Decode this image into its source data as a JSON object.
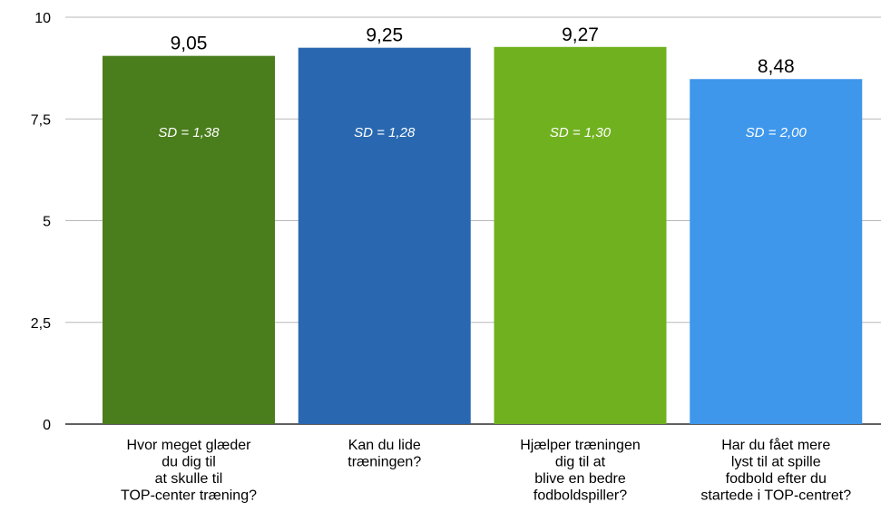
{
  "chart_data": {
    "type": "bar",
    "title": "",
    "xlabel": "",
    "ylabel": "",
    "ylim": [
      0,
      10
    ],
    "yticks": [
      "0",
      "2,5",
      "5",
      "7,5",
      "10"
    ],
    "ytick_values": [
      0,
      2.5,
      5,
      7.5,
      10
    ],
    "grid": true,
    "categories": [
      [
        "Hvor meget glæder",
        "du dig til",
        "at skulle til",
        "TOP-center træning?"
      ],
      [
        "Kan du lide",
        "træningen?"
      ],
      [
        "Hjælper træningen",
        "dig til at",
        "blive en bedre",
        "fodboldspiller?"
      ],
      [
        "Har du fået mere",
        "lyst til at spille",
        "fodbold efter du",
        "startede i TOP-centret?"
      ]
    ],
    "values": [
      9.05,
      9.25,
      9.27,
      8.48
    ],
    "value_labels": [
      "9,05",
      "9,25",
      "9,27",
      "8,48"
    ],
    "sd_labels": [
      "SD = 1,38",
      "SD = 1,28",
      "SD = 1,30",
      "SD = 2,00"
    ],
    "colors": [
      "#4a7d1c",
      "#2968b0",
      "#70b120",
      "#3e97eb"
    ]
  }
}
